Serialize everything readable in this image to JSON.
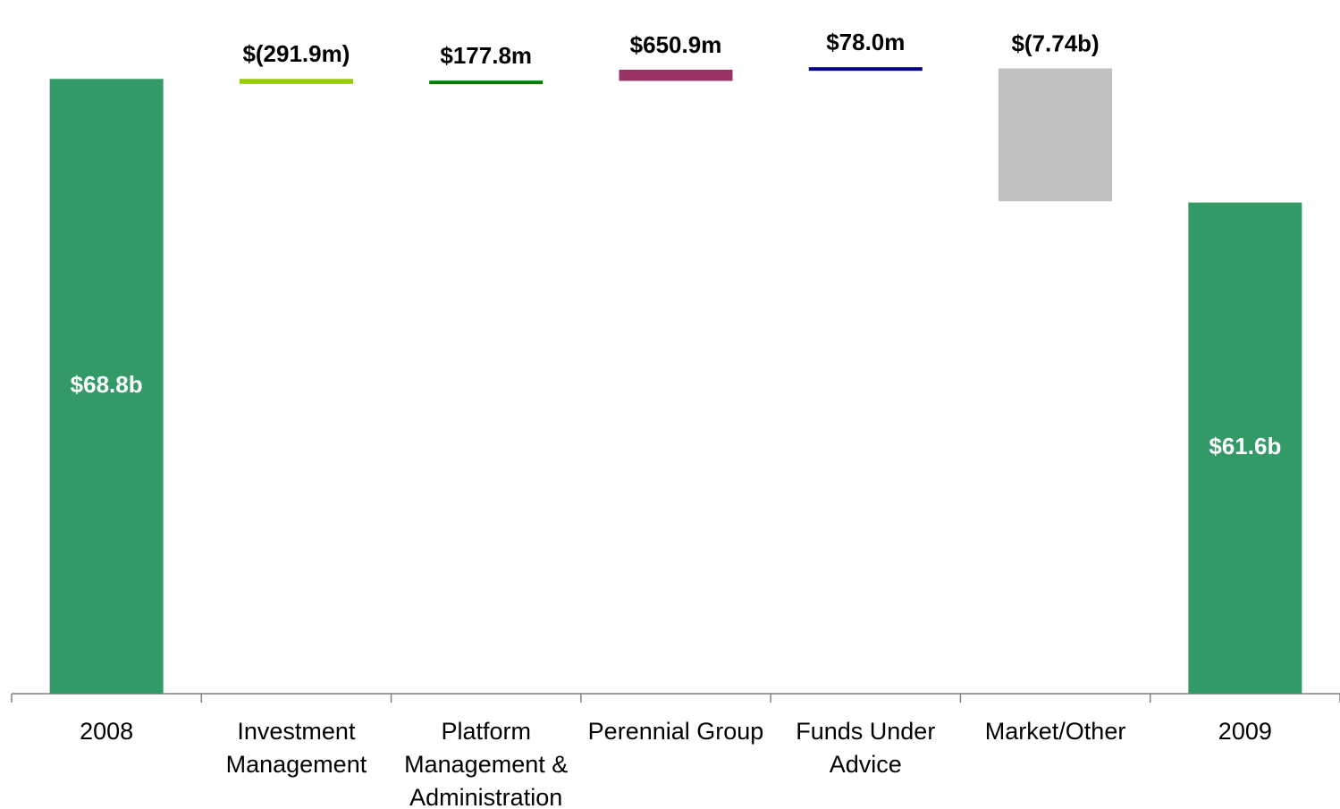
{
  "chart_data": {
    "type": "waterfall",
    "categories": [
      "2008",
      "Investment Management",
      "Platform Management & Administration",
      "Perennial Group",
      "Funds Under Advice",
      "Market/Other",
      "2009"
    ],
    "values": [
      68.8,
      -0.2919,
      0.1778,
      0.6509,
      0.078,
      -7.74,
      61.6
    ],
    "value_labels": [
      "$68.8b",
      "$(291.9m)",
      "$177.8m",
      "$650.9m",
      "$78.0m",
      "$(7.74b)",
      "$61.6b"
    ],
    "measure": [
      "total",
      "relative",
      "relative",
      "relative",
      "relative",
      "relative",
      "total"
    ],
    "colors": [
      "#339966",
      "#99cc00",
      "#008000",
      "#993366",
      "#000080",
      "#c0c0c0",
      "#339966"
    ],
    "ylim": [
      33,
      71
    ]
  }
}
